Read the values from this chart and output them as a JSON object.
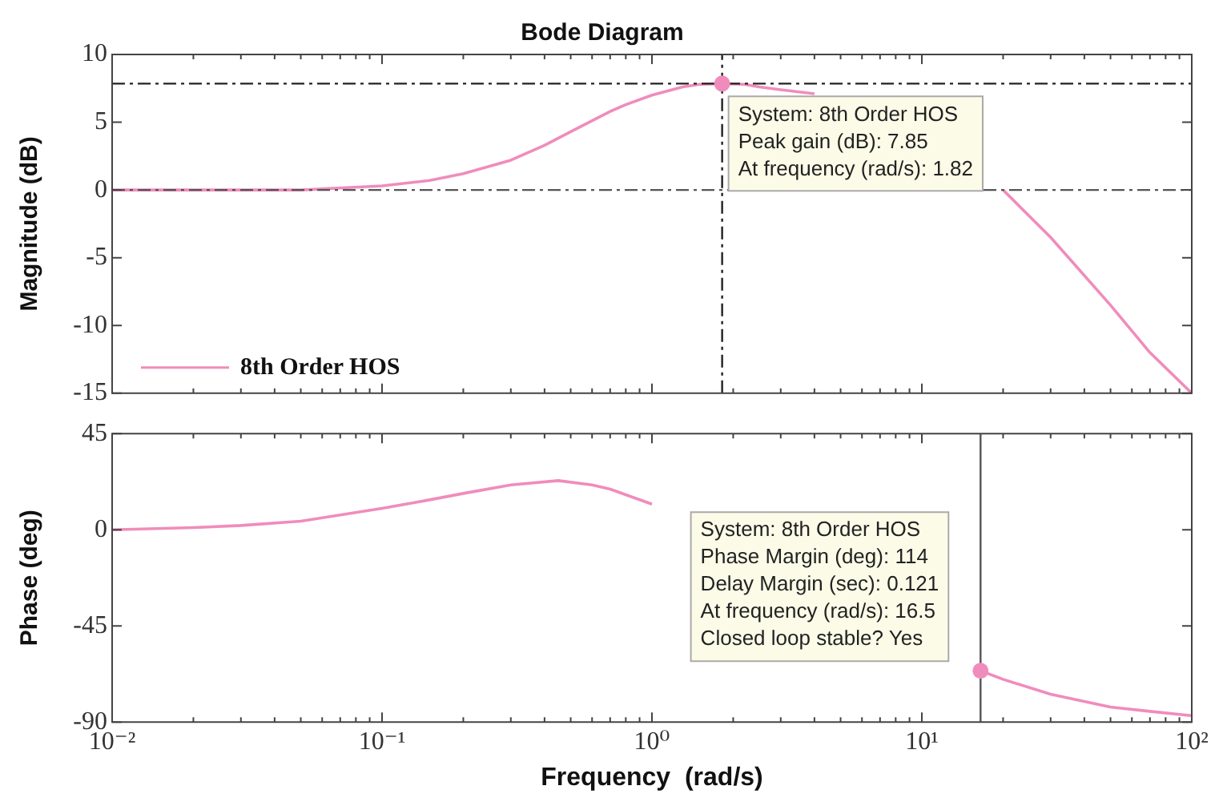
{
  "chart_data": [
    {
      "type": "line",
      "title": "Bode Diagram",
      "ylabel": "Magnitude (dB)",
      "log": "x",
      "xlim": [
        0.01,
        100
      ],
      "xticks": [
        {
          "value": 0.01,
          "label": null
        },
        {
          "value": 0.1,
          "label": null
        },
        {
          "value": 1,
          "label": null
        },
        {
          "value": 10,
          "label": null
        },
        {
          "value": 100,
          "label": null
        }
      ],
      "ylim": [
        -15,
        10
      ],
      "yticks": [
        -15,
        -10,
        -5,
        0,
        5,
        10
      ],
      "tick_labels": "y",
      "grid": false,
      "legend": "bottom left",
      "marker": "none",
      "line_style": "solid",
      "series": [
        {
          "name": "8th Order HOS",
          "color": "#f08cbc",
          "x": [
            0.01,
            0.03,
            0.05,
            0.1,
            0.15,
            0.2,
            0.3,
            0.4,
            0.5,
            0.7,
            0.8,
            1,
            1.3,
            1.5,
            1.82,
            2.2,
            2.5,
            3,
            4,
            5,
            7,
            10,
            15,
            20,
            30,
            50,
            70,
            100
          ],
          "values": [
            0,
            0,
            0,
            0.3,
            0.7,
            1.2,
            2.2,
            3.3,
            4.3,
            5.8,
            6.3,
            7,
            7.6,
            7.8,
            7.85,
            7.8,
            7.6,
            7.4,
            7.1,
            null,
            null,
            null,
            null,
            0,
            -3.5,
            -8.5,
            -12,
            -15
          ]
        }
      ],
      "ref_lines": [
        {
          "axis": "y",
          "value": 7.85,
          "color": "#222222",
          "line_style": "dashed"
        },
        {
          "axis": "y",
          "value": 0,
          "color": "#555555",
          "line_style": "dashed"
        },
        {
          "axis": "x",
          "value": 1.82,
          "color": "#222222",
          "line_style": "dashed"
        }
      ],
      "annotations": [
        {
          "text": "System: 8th Order HOS\nPeak gain (dB): 7.85\nAt frequency (rad/s): 1.82",
          "x": 1.82,
          "y": 7.85
        }
      ]
    },
    {
      "type": "line",
      "xlabel": "Frequency  (rad/s)",
      "ylabel": "Phase (deg)",
      "log": "x",
      "xlim": [
        0.01,
        100
      ],
      "xticks": [
        {
          "value": 0.01,
          "label": "10⁻²"
        },
        {
          "value": 0.1,
          "label": "10⁻¹"
        },
        {
          "value": 1,
          "label": "10⁰"
        },
        {
          "value": 10,
          "label": "10¹"
        },
        {
          "value": 100,
          "label": "10²"
        }
      ],
      "ylim": [
        -90,
        45
      ],
      "yticks": [
        -90,
        -45,
        0,
        45
      ],
      "grid": false,
      "marker": "none",
      "line_style": "solid",
      "series": [
        {
          "color": "#f08cbc",
          "x": [
            0.01,
            0.02,
            0.03,
            0.05,
            0.1,
            0.15,
            0.2,
            0.3,
            0.45,
            0.6,
            0.7,
            1,
            1.5,
            2,
            3,
            5,
            8,
            12,
            16.5,
            20,
            30,
            50,
            70,
            100
          ],
          "values": [
            0,
            1,
            2,
            4,
            10,
            14,
            17,
            21,
            23,
            21,
            19,
            12,
            null,
            null,
            null,
            null,
            null,
            null,
            -66,
            -70,
            -77,
            -83,
            -85,
            -87
          ]
        }
      ],
      "ref_lines": [
        {
          "axis": "x",
          "value": 16.5,
          "color": "#555555",
          "line_style": "solid"
        }
      ],
      "annotations": [
        {
          "text": "System: 8th Order HOS\nPhase Margin (deg): 114\nDelay Margin (sec): 0.121\nAt frequency (rad/s): 16.5\nClosed loop stable? Yes",
          "x": 16.5,
          "y": -66
        }
      ]
    }
  ]
}
